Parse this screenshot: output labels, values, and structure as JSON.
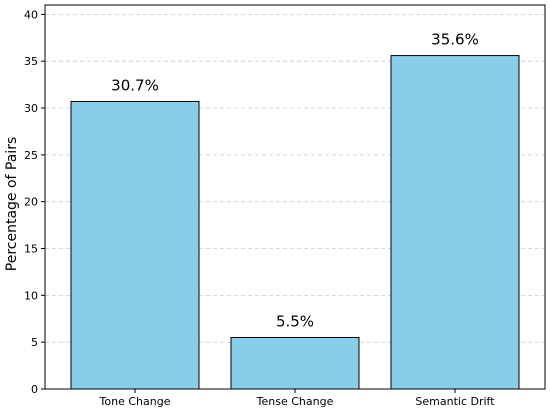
{
  "chart_data": {
    "type": "bar",
    "title": "",
    "xlabel": "",
    "ylabel": "Percentage of Pairs",
    "categories": [
      "Tone Change",
      "Tense Change",
      "Semantic Drift"
    ],
    "values": [
      30.7,
      5.5,
      35.6
    ],
    "data_labels": [
      "30.7%",
      "5.5%",
      "35.6%"
    ],
    "ylim": [
      0,
      41
    ],
    "yticks": [
      0,
      5,
      10,
      15,
      20,
      25,
      30,
      35,
      40
    ],
    "grid": "y-dashed",
    "legend": "none",
    "colors": {
      "bar_fill": "#87CEEB",
      "bar_edge": "#000000",
      "grid": "#cccccc"
    }
  }
}
